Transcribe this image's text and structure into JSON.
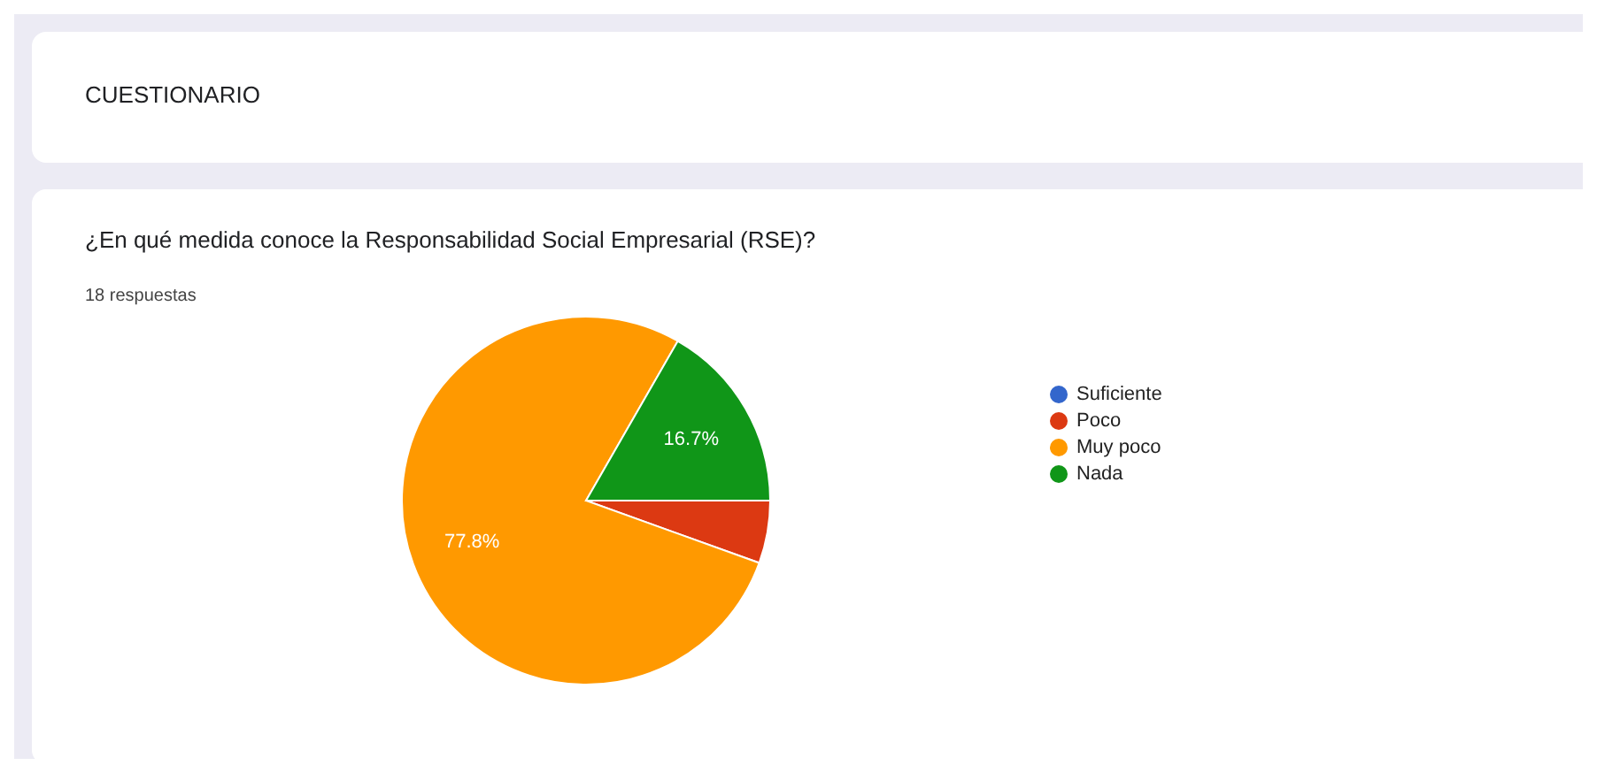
{
  "chart_data": {
    "type": "pie",
    "title": "CUESTIONARIO",
    "subtitle": "¿En qué medida conoce la Responsabilidad Social Empresarial (RSE)?",
    "annotations": [
      "18 respuestas"
    ],
    "categories": [
      "Suficiente",
      "Poco",
      "Muy poco",
      "Nada"
    ],
    "values": [
      0,
      5.5,
      77.8,
      16.7
    ],
    "colors": [
      "#3366cc",
      "#dc3912",
      "#ff9900",
      "#109618"
    ],
    "value_labels": [
      null,
      null,
      "77.8%",
      "16.7%"
    ],
    "legend": "right"
  }
}
